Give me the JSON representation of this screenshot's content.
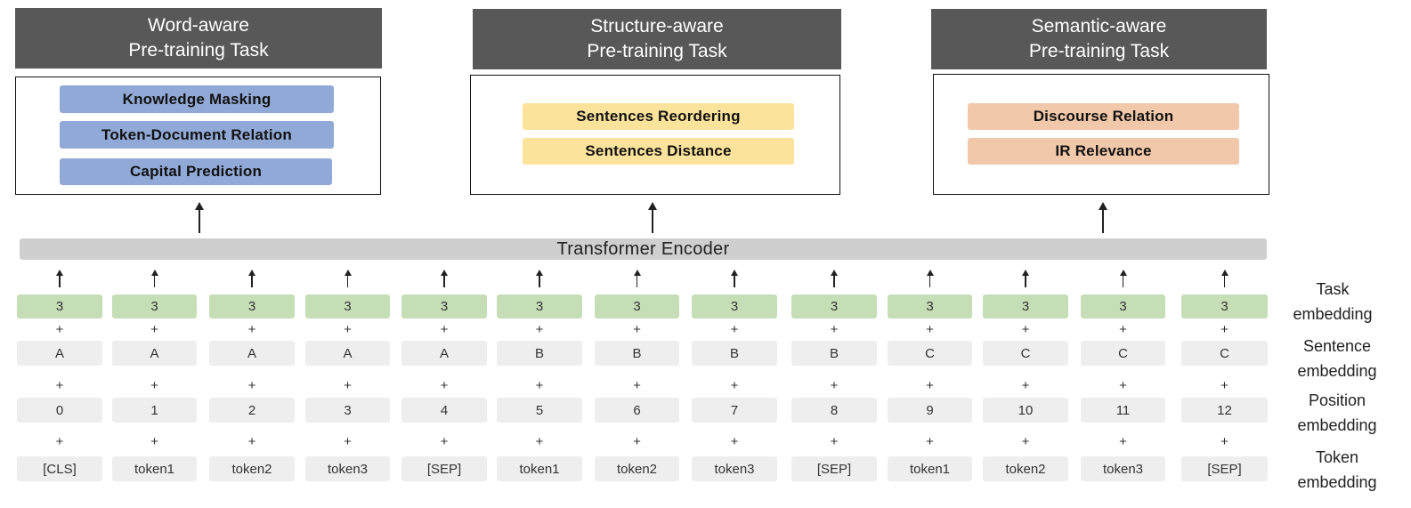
{
  "tasks": [
    {
      "title_line1": "Word-aware",
      "title_line2": "Pre-training Task",
      "items": [
        "Knowledge Masking",
        "Token-Document Relation",
        "Capital Prediction"
      ],
      "color": "#91a9d6"
    },
    {
      "title_line1": "Structure-aware",
      "title_line2": "Pre-training Task",
      "items": [
        "Sentences Reordering",
        "Sentences Distance"
      ],
      "color": "#fbe39c"
    },
    {
      "title_line1": "Semantic-aware",
      "title_line2": "Pre-training Task",
      "items": [
        "Discourse Relation",
        "IR Relevance"
      ],
      "color": "#f1c8a9"
    }
  ],
  "encoder": {
    "label": "Transformer Encoder"
  },
  "plus_sign": "+",
  "embeddings": {
    "task": [
      "3",
      "3",
      "3",
      "3",
      "3",
      "3",
      "3",
      "3",
      "3",
      "3",
      "3",
      "3",
      "3"
    ],
    "sentence": [
      "A",
      "A",
      "A",
      "A",
      "A",
      "B",
      "B",
      "B",
      "B",
      "C",
      "C",
      "C",
      "C"
    ],
    "position": [
      "0",
      "1",
      "2",
      "3",
      "4",
      "5",
      "6",
      "7",
      "8",
      "9",
      "10",
      "11",
      "12"
    ],
    "token": [
      "[CLS]",
      "token1",
      "token2",
      "token3",
      "[SEP]",
      "token1",
      "token2",
      "token3",
      "[SEP]",
      "token1",
      "token2",
      "token3",
      "[SEP]"
    ]
  },
  "row_labels": {
    "task": [
      "Task",
      "embedding"
    ],
    "sentence": [
      "Sentence",
      "embedding"
    ],
    "position": [
      "Position",
      "embedding"
    ],
    "token": [
      "Token",
      "embedding"
    ]
  },
  "colors": {
    "header": "#585858",
    "encoder": "#cfcfd0",
    "task_embedding": "#c6deb5",
    "other_embedding": "#eeeeef"
  }
}
